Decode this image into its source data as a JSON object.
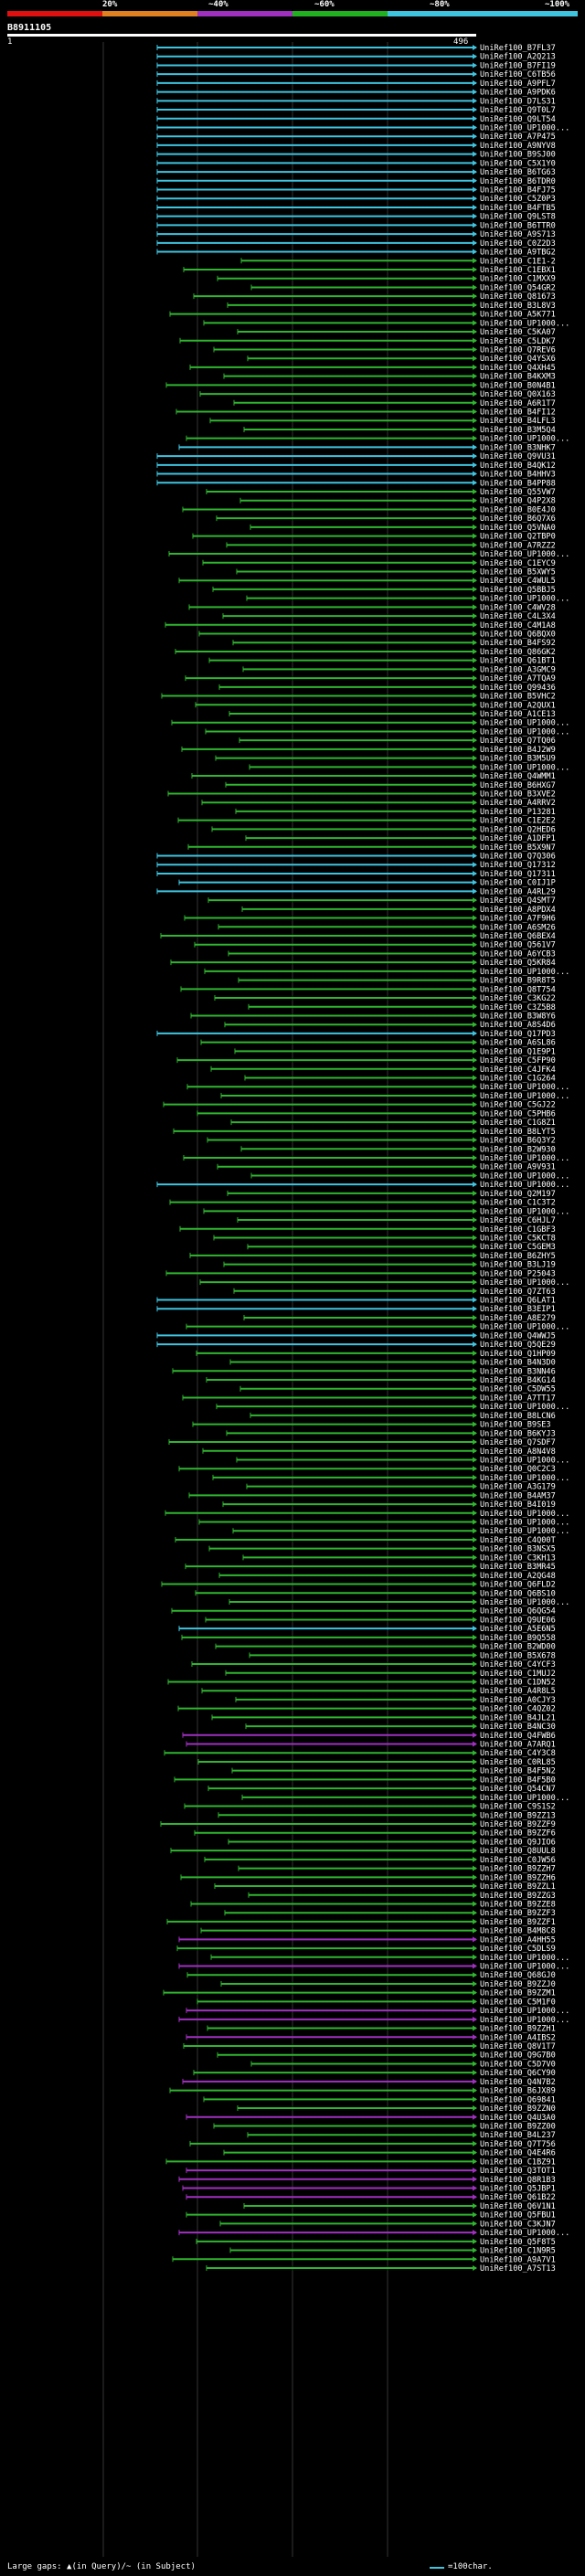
{
  "header": {
    "scale_labels": [
      "20%",
      "~40%",
      "~60%",
      "~80%",
      "~100%"
    ],
    "query_name": "B8911105",
    "query_start": "1",
    "query_end": "496"
  },
  "colors": {
    "scale": [
      "#e01010",
      "#e08020",
      "#a030c0",
      "#20b020",
      "#3fc4e0"
    ],
    "hit": {
      "cyan": "#3fc4e0",
      "green": "#2fb52f",
      "purple": "#a030c0"
    }
  },
  "hits": [
    {
      "label": "UniRef100_B7FL37",
      "c": "cyan"
    },
    {
      "label": "UniRef100_A2Q213",
      "c": "cyan"
    },
    {
      "label": "UniRef100_B7FI19",
      "c": "cyan"
    },
    {
      "label": "UniRef100_C6TB56",
      "c": "cyan"
    },
    {
      "label": "UniRef100_A9PFL7",
      "c": "cyan"
    },
    {
      "label": "UniRef100_A9PDK6",
      "c": "cyan"
    },
    {
      "label": "UniRef100_D7LS31",
      "c": "cyan"
    },
    {
      "label": "UniRef100_Q9T0L7",
      "c": "cyan"
    },
    {
      "label": "UniRef100_Q9LT54",
      "c": "cyan"
    },
    {
      "label": "UniRef100_UP1000...",
      "c": "cyan"
    },
    {
      "label": "UniRef100_A7P475",
      "c": "cyan"
    },
    {
      "label": "UniRef100_A9NYV8",
      "c": "cyan"
    },
    {
      "label": "UniRef100_B9SJ00",
      "c": "cyan"
    },
    {
      "label": "UniRef100_C5X1Y0",
      "c": "cyan"
    },
    {
      "label": "UniRef100_B6TG63",
      "c": "cyan"
    },
    {
      "label": "UniRef100_B6TDR0",
      "c": "cyan"
    },
    {
      "label": "UniRef100_B4FJ75",
      "c": "cyan"
    },
    {
      "label": "UniRef100_C5Z0P3",
      "c": "cyan"
    },
    {
      "label": "UniRef100_B4FTB5",
      "c": "cyan"
    },
    {
      "label": "UniRef100_Q9LST8",
      "c": "cyan"
    },
    {
      "label": "UniRef100_B6TTR0",
      "c": "cyan"
    },
    {
      "label": "UniRef100_A9S713",
      "c": "cyan"
    },
    {
      "label": "UniRef100_C0Z2D3",
      "c": "cyan"
    },
    {
      "label": "UniRef100_A9TBG2",
      "c": "cyan"
    },
    {
      "label": "UniRef100_C1E1-2",
      "c": "green"
    },
    {
      "label": "UniRef100_C1EBX1",
      "c": "green"
    },
    {
      "label": "UniRef100_C1MXX9",
      "c": "green"
    },
    {
      "label": "UniRef100_Q54GR2",
      "c": "green"
    },
    {
      "label": "UniRef100_Q81673",
      "c": "green"
    },
    {
      "label": "UniRef100_B3L8V3",
      "c": "green"
    },
    {
      "label": "UniRef100_A5K771",
      "c": "green"
    },
    {
      "label": "UniRef100_UP1000...",
      "c": "green"
    },
    {
      "label": "UniRef100_C5KA07",
      "c": "green"
    },
    {
      "label": "UniRef100_C5LDK7",
      "c": "green"
    },
    {
      "label": "UniRef100_Q7REV6",
      "c": "green"
    },
    {
      "label": "UniRef100_Q4YSX6",
      "c": "green"
    },
    {
      "label": "UniRef100_Q4XH45",
      "c": "green"
    },
    {
      "label": "UniRef100_B4KXM3",
      "c": "green"
    },
    {
      "label": "UniRef100_B0N4B1",
      "c": "green"
    },
    {
      "label": "UniRef100_Q0X163",
      "c": "green"
    },
    {
      "label": "UniRef100_A6R1T7",
      "c": "green"
    },
    {
      "label": "UniRef100_B4FI12",
      "c": "green"
    },
    {
      "label": "UniRef100_B4LFL3",
      "c": "green"
    },
    {
      "label": "UniRef100_B3M5Q4",
      "c": "green"
    },
    {
      "label": "UniRef100_UP1000...",
      "c": "green"
    },
    {
      "label": "UniRef100_B3NHK7",
      "c": "cyan"
    },
    {
      "label": "UniRef100_Q9VU31",
      "c": "cyan"
    },
    {
      "label": "UniRef100_B4QK12",
      "c": "cyan"
    },
    {
      "label": "UniRef100_B4HHV3",
      "c": "cyan"
    },
    {
      "label": "UniRef100_B4PP88",
      "c": "cyan"
    },
    {
      "label": "UniRef100_Q55VW7",
      "c": "green"
    },
    {
      "label": "UniRef100_Q4P2X8",
      "c": "green"
    },
    {
      "label": "UniRef100_B0E4J0",
      "c": "green"
    },
    {
      "label": "UniRef100_B6Q7X6",
      "c": "green"
    },
    {
      "label": "UniRef100_Q5VNA0",
      "c": "green"
    },
    {
      "label": "UniRef100_Q2TBP0",
      "c": "green"
    },
    {
      "label": "UniRef100_A7RZZ2",
      "c": "green"
    },
    {
      "label": "UniRef100_UP1000...",
      "c": "green"
    },
    {
      "label": "UniRef100_C1EYC9",
      "c": "green"
    },
    {
      "label": "UniRef100_B5XWY5",
      "c": "green"
    },
    {
      "label": "UniRef100_C4WUL5",
      "c": "green"
    },
    {
      "label": "UniRef100_Q5BBJ5",
      "c": "green"
    },
    {
      "label": "UniRef100_UP1000...",
      "c": "green"
    },
    {
      "label": "UniRef100_C4WV28",
      "c": "green"
    },
    {
      "label": "UniRef100_C4L3X4",
      "c": "green"
    },
    {
      "label": "UniRef100_C4M1A8",
      "c": "green"
    },
    {
      "label": "UniRef100_Q6BQX0",
      "c": "green"
    },
    {
      "label": "UniRef100_B4FS92",
      "c": "green"
    },
    {
      "label": "UniRef100_Q86GK2",
      "c": "green"
    },
    {
      "label": "UniRef100_Q61BT1",
      "c": "green"
    },
    {
      "label": "UniRef100_A3GMC9",
      "c": "green"
    },
    {
      "label": "UniRef100_A7TQA9",
      "c": "green"
    },
    {
      "label": "UniRef100_Q99436",
      "c": "green"
    },
    {
      "label": "UniRef100_B5VHC2",
      "c": "green"
    },
    {
      "label": "UniRef100_A2QUX1",
      "c": "green"
    },
    {
      "label": "UniRef100_A1CE13",
      "c": "green"
    },
    {
      "label": "UniRef100_UP1000...",
      "c": "green"
    },
    {
      "label": "UniRef100_UP1000...",
      "c": "green"
    },
    {
      "label": "UniRef100_Q7TQ06",
      "c": "green"
    },
    {
      "label": "UniRef100_B4J2W9",
      "c": "green"
    },
    {
      "label": "UniRef100_B3M5U9",
      "c": "green"
    },
    {
      "label": "UniRef100_UP1000...",
      "c": "green"
    },
    {
      "label": "UniRef100_Q4WMM1",
      "c": "green"
    },
    {
      "label": "UniRef100_B6HXG7",
      "c": "green"
    },
    {
      "label": "UniRef100_B3XVE2",
      "c": "green"
    },
    {
      "label": "UniRef100_A4RRV2",
      "c": "green"
    },
    {
      "label": "UniRef100_P13281",
      "c": "green"
    },
    {
      "label": "UniRef100_C1E2E2",
      "c": "green"
    },
    {
      "label": "UniRef100_Q2HED6",
      "c": "green"
    },
    {
      "label": "UniRef100_A1DFP1",
      "c": "green"
    },
    {
      "label": "UniRef100_B5X9N7",
      "c": "green"
    },
    {
      "label": "UniRef100_Q7Q306",
      "c": "cyan"
    },
    {
      "label": "UniRef100_Q17312",
      "c": "cyan"
    },
    {
      "label": "UniRef100_Q17311",
      "c": "cyan"
    },
    {
      "label": "UniRef100_C0IJ1P",
      "c": "cyan"
    },
    {
      "label": "UniRef100_A4RL29",
      "c": "cyan"
    },
    {
      "label": "UniRef100_Q4SMT7",
      "c": "green"
    },
    {
      "label": "UniRef100_A8PDX4",
      "c": "green"
    },
    {
      "label": "UniRef100_A7F9H6",
      "c": "green"
    },
    {
      "label": "UniRef100_A6SM26",
      "c": "green"
    },
    {
      "label": "UniRef100_Q6BEX4",
      "c": "green"
    },
    {
      "label": "UniRef100_Q561V7",
      "c": "green"
    },
    {
      "label": "UniRef100_A6YCB3",
      "c": "green"
    },
    {
      "label": "UniRef100_Q5KR84",
      "c": "green"
    },
    {
      "label": "UniRef100_UP1000...",
      "c": "green"
    },
    {
      "label": "UniRef100_B9R8T5",
      "c": "green"
    },
    {
      "label": "UniRef100_Q8T754",
      "c": "green"
    },
    {
      "label": "UniRef100_C3KG22",
      "c": "green"
    },
    {
      "label": "UniRef100_C3Z5B8",
      "c": "green"
    },
    {
      "label": "UniRef100_B3W8Y6",
      "c": "green"
    },
    {
      "label": "UniRef100_A8S4D6",
      "c": "green"
    },
    {
      "label": "UniRef100_Q17PD3",
      "c": "cyan"
    },
    {
      "label": "UniRef100_A6SL86",
      "c": "green"
    },
    {
      "label": "UniRef100_Q1E9P1",
      "c": "green"
    },
    {
      "label": "UniRef100_C5FP90",
      "c": "green"
    },
    {
      "label": "UniRef100_C4JFK4",
      "c": "green"
    },
    {
      "label": "UniRef100_C1G264",
      "c": "green"
    },
    {
      "label": "UniRef100_UP1000...",
      "c": "green"
    },
    {
      "label": "UniRef100_UP1000...",
      "c": "green"
    },
    {
      "label": "UniRef100_C5GJ22",
      "c": "green"
    },
    {
      "label": "UniRef100_C5PHB6",
      "c": "green"
    },
    {
      "label": "UniRef100_C1G8Z1",
      "c": "green"
    },
    {
      "label": "UniRef100_B8LYT5",
      "c": "green"
    },
    {
      "label": "UniRef100_B6Q3Y2",
      "c": "green"
    },
    {
      "label": "UniRef100_B2W930",
      "c": "green"
    },
    {
      "label": "UniRef100_UP1000...",
      "c": "green"
    },
    {
      "label": "UniRef100_A9V931",
      "c": "green"
    },
    {
      "label": "UniRef100_UP1000...",
      "c": "green"
    },
    {
      "label": "UniRef100_UP1000...",
      "c": "cyan"
    },
    {
      "label": "UniRef100_Q2M197",
      "c": "green"
    },
    {
      "label": "UniRef100_C1C3T2",
      "c": "green"
    },
    {
      "label": "UniRef100_UP1000...",
      "c": "green"
    },
    {
      "label": "UniRef100_C6HJL7",
      "c": "green"
    },
    {
      "label": "UniRef100_C1GBF3",
      "c": "green"
    },
    {
      "label": "UniRef100_C5KCT8",
      "c": "green"
    },
    {
      "label": "UniRef100_C5GEM3",
      "c": "green"
    },
    {
      "label": "UniRef100_B6ZHY5",
      "c": "green"
    },
    {
      "label": "UniRef100_B3LJ19",
      "c": "green"
    },
    {
      "label": "UniRef100_P25043",
      "c": "green"
    },
    {
      "label": "UniRef100_UP1000...",
      "c": "green"
    },
    {
      "label": "UniRef100_Q7ZT63",
      "c": "green"
    },
    {
      "label": "UniRef100_Q6LAT1",
      "c": "cyan"
    },
    {
      "label": "UniRef100_B3EIP1",
      "c": "cyan"
    },
    {
      "label": "UniRef100_A8E279",
      "c": "green"
    },
    {
      "label": "UniRef100_UP1000...",
      "c": "green"
    },
    {
      "label": "UniRef100_Q4WWJ5",
      "c": "cyan"
    },
    {
      "label": "UniRef100_Q5QE29",
      "c": "cyan"
    },
    {
      "label": "UniRef100_Q1HP09",
      "c": "green"
    },
    {
      "label": "UniRef100_B4N3D0",
      "c": "green"
    },
    {
      "label": "UniRef100_B3NN46",
      "c": "green"
    },
    {
      "label": "UniRef100_B4KG14",
      "c": "green"
    },
    {
      "label": "UniRef100_C5DW55",
      "c": "green"
    },
    {
      "label": "UniRef100_A7TT17",
      "c": "green"
    },
    {
      "label": "UniRef100_UP1000...",
      "c": "green"
    },
    {
      "label": "UniRef100_B8LCN6",
      "c": "green"
    },
    {
      "label": "UniRef100_B9SE3",
      "c": "green"
    },
    {
      "label": "UniRef100_B6KYJ3",
      "c": "green"
    },
    {
      "label": "UniRef100_Q7SDF7",
      "c": "green"
    },
    {
      "label": "UniRef100_A8N4V8",
      "c": "green"
    },
    {
      "label": "UniRef100_UP1000...",
      "c": "green"
    },
    {
      "label": "UniRef100_Q0C2C3",
      "c": "green"
    },
    {
      "label": "UniRef100_UP1000...",
      "c": "green"
    },
    {
      "label": "UniRef100_A3G179",
      "c": "green"
    },
    {
      "label": "UniRef100_B4AM37",
      "c": "green"
    },
    {
      "label": "UniRef100_B4I019",
      "c": "green"
    },
    {
      "label": "UniRef100_UP1000...",
      "c": "green"
    },
    {
      "label": "UniRef100_UP1000...",
      "c": "green"
    },
    {
      "label": "UniRef100_UP1000...",
      "c": "green"
    },
    {
      "label": "UniRef100_C4Q00T",
      "c": "green"
    },
    {
      "label": "UniRef100_B3NSX5",
      "c": "green"
    },
    {
      "label": "UniRef100_C3KH13",
      "c": "green"
    },
    {
      "label": "UniRef100_B3MR45",
      "c": "green"
    },
    {
      "label": "UniRef100_A2QG48",
      "c": "green"
    },
    {
      "label": "UniRef100_Q6FLD2",
      "c": "green"
    },
    {
      "label": "UniRef100_Q6BS10",
      "c": "green"
    },
    {
      "label": "UniRef100_UP1000...",
      "c": "green"
    },
    {
      "label": "UniRef100_Q6QG54",
      "c": "green"
    },
    {
      "label": "UniRef100_Q9UE06",
      "c": "green"
    },
    {
      "label": "UniRef100_A5E6N5",
      "c": "cyan"
    },
    {
      "label": "UniRef100_B9Q558",
      "c": "green"
    },
    {
      "label": "UniRef100_B2WD00",
      "c": "green"
    },
    {
      "label": "UniRef100_B5X678",
      "c": "green"
    },
    {
      "label": "UniRef100_C4YCF3",
      "c": "green"
    },
    {
      "label": "UniRef100_C1MUJ2",
      "c": "green"
    },
    {
      "label": "UniRef100_C1DN52",
      "c": "green"
    },
    {
      "label": "UniRef100_A4R8L5",
      "c": "green"
    },
    {
      "label": "UniRef100_A0CJY3",
      "c": "green"
    },
    {
      "label": "UniRef100_C4QZ02",
      "c": "green"
    },
    {
      "label": "UniRef100_B4JL21",
      "c": "green"
    },
    {
      "label": "UniRef100_B4NC30",
      "c": "green"
    },
    {
      "label": "UniRef100_Q4FWB6",
      "c": "purple"
    },
    {
      "label": "UniRef100_A7ARQ1",
      "c": "purple"
    },
    {
      "label": "UniRef100_C4Y3C8",
      "c": "green"
    },
    {
      "label": "UniRef100_C0RL85",
      "c": "green"
    },
    {
      "label": "UniRef100_B4F5N2",
      "c": "green"
    },
    {
      "label": "UniRef100_B4F5B0",
      "c": "green"
    },
    {
      "label": "UniRef100_Q54CN7",
      "c": "green"
    },
    {
      "label": "UniRef100_UP1000...",
      "c": "green"
    },
    {
      "label": "UniRef100_C9S1S2",
      "c": "green"
    },
    {
      "label": "UniRef100_B9ZZ13",
      "c": "green"
    },
    {
      "label": "UniRef100_B9ZZF9",
      "c": "green"
    },
    {
      "label": "UniRef100_B9ZZF6",
      "c": "green"
    },
    {
      "label": "UniRef100_Q9JIO6",
      "c": "green"
    },
    {
      "label": "UniRef100_Q8UUL8",
      "c": "green"
    },
    {
      "label": "UniRef100_C0JW56",
      "c": "green"
    },
    {
      "label": "UniRef100_B9ZZH7",
      "c": "green"
    },
    {
      "label": "UniRef100_B9ZZH6",
      "c": "green"
    },
    {
      "label": "UniRef100_B9ZZL1",
      "c": "green"
    },
    {
      "label": "UniRef100_B9ZZG3",
      "c": "green"
    },
    {
      "label": "UniRef100_B9ZZE8",
      "c": "green"
    },
    {
      "label": "UniRef100_B9ZZF3",
      "c": "green"
    },
    {
      "label": "UniRef100_B9ZZF1",
      "c": "green"
    },
    {
      "label": "UniRef100_B4M8C8",
      "c": "green"
    },
    {
      "label": "UniRef100_A4HH55",
      "c": "purple"
    },
    {
      "label": "UniRef100_C5DLS9",
      "c": "green"
    },
    {
      "label": "UniRef100_UP1000...",
      "c": "green"
    },
    {
      "label": "UniRef100_UP1000...",
      "c": "purple"
    },
    {
      "label": "UniRef100_Q68GJ0",
      "c": "green"
    },
    {
      "label": "UniRef100_B9ZZJ0",
      "c": "green"
    },
    {
      "label": "UniRef100_B9ZZM1",
      "c": "green"
    },
    {
      "label": "UniRef100_C5M1F0",
      "c": "green"
    },
    {
      "label": "UniRef100_UP1000...",
      "c": "purple"
    },
    {
      "label": "UniRef100_UP1000...",
      "c": "purple"
    },
    {
      "label": "UniRef100_B9ZZH1",
      "c": "green"
    },
    {
      "label": "UniRef100_A4IBS2",
      "c": "purple"
    },
    {
      "label": "UniRef100_Q8V1T7",
      "c": "green"
    },
    {
      "label": "UniRef100_Q9G7B0",
      "c": "green"
    },
    {
      "label": "UniRef100_C5D7V0",
      "c": "green"
    },
    {
      "label": "UniRef100_Q6CY90",
      "c": "green"
    },
    {
      "label": "UniRef100_Q4N7B2",
      "c": "purple"
    },
    {
      "label": "UniRef100_B6JX89",
      "c": "green"
    },
    {
      "label": "UniRef100_Q69841",
      "c": "green"
    },
    {
      "label": "UniRef100_B9ZZN0",
      "c": "green"
    },
    {
      "label": "UniRef100_Q4U3A0",
      "c": "purple"
    },
    {
      "label": "UniRef100_B9ZZ00",
      "c": "green"
    },
    {
      "label": "UniRef100_B4L237",
      "c": "green"
    },
    {
      "label": "UniRef100_Q7T756",
      "c": "green"
    },
    {
      "label": "UniRef100_Q4E4R6",
      "c": "green"
    },
    {
      "label": "UniRef100_C1BZ91",
      "c": "green"
    },
    {
      "label": "UniRef100_Q3TOT1",
      "c": "purple"
    },
    {
      "label": "UniRef100_Q8R1B3",
      "c": "purple"
    },
    {
      "label": "UniRef100_Q5JBP1",
      "c": "purple"
    },
    {
      "label": "UniRef100_Q61B22",
      "c": "purple"
    },
    {
      "label": "UniRef100_Q6V1N1",
      "c": "green"
    },
    {
      "label": "UniRef100_Q5FBU1",
      "c": "green"
    },
    {
      "label": "UniRef100_C3KJN7",
      "c": "green"
    },
    {
      "label": "UniRef100_UP1000...",
      "c": "purple"
    },
    {
      "label": "UniRef100_Q5F8T5",
      "c": "green"
    },
    {
      "label": "UniRef100_C1N9R5",
      "c": "green"
    },
    {
      "label": "UniRef100_A9A7V1",
      "c": "green"
    },
    {
      "label": "UniRef100_A7ST13",
      "c": "green"
    }
  ],
  "footer": {
    "gaps_text": "Large gaps: ▲(in Query)/~ (in Subject)",
    "legend_text": "=100char."
  }
}
